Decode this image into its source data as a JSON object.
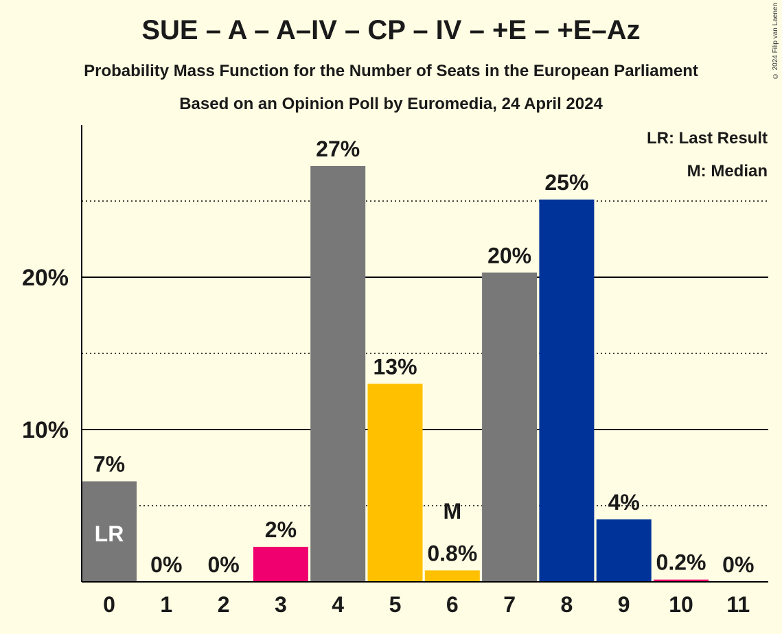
{
  "title": "SUE – A – A–IV – CP – IV – +E – +E–Az",
  "subtitle": "Probability Mass Function for the Number of Seats in the European Parliament",
  "source_line": "Based on an Opinion Poll by Euromedia, 24 April 2024",
  "copyright": "© 2024 Filip van Laenen",
  "legend": {
    "last_result": "LR: Last Result",
    "median": "M: Median",
    "placement": "top-right"
  },
  "colors": {
    "background": "#fffde3",
    "grey": "#787878",
    "pink": "#f0006e",
    "yellow": "#ffc000",
    "blue": "#003399"
  },
  "chart_data": {
    "type": "bar",
    "categories": [
      "0",
      "1",
      "2",
      "3",
      "4",
      "5",
      "6",
      "7",
      "8",
      "9",
      "10",
      "11"
    ],
    "values": [
      6.6,
      0,
      0,
      2.3,
      27.3,
      13.0,
      0.75,
      20.3,
      25.1,
      4.1,
      0.15,
      0
    ],
    "labels": [
      "7%",
      "0%",
      "0%",
      "2%",
      "27%",
      "13%",
      "0.8%",
      "20%",
      "25%",
      "4%",
      "0.2%",
      "0%"
    ],
    "colors": [
      "#787878",
      "#787878",
      "#787878",
      "#f0006e",
      "#787878",
      "#ffc000",
      "#ffc000",
      "#787878",
      "#003399",
      "#003399",
      "#f0006e",
      "#787878"
    ],
    "ylim": [
      0,
      30
    ],
    "y_ticks": [
      10,
      20
    ],
    "y_tick_labels": [
      "10%",
      "20%"
    ],
    "minor_gridlines": [
      5,
      15,
      25
    ],
    "last_result_index": 0,
    "last_result_marker": "LR",
    "median_index": 6,
    "median_marker": "M",
    "grid": true
  }
}
